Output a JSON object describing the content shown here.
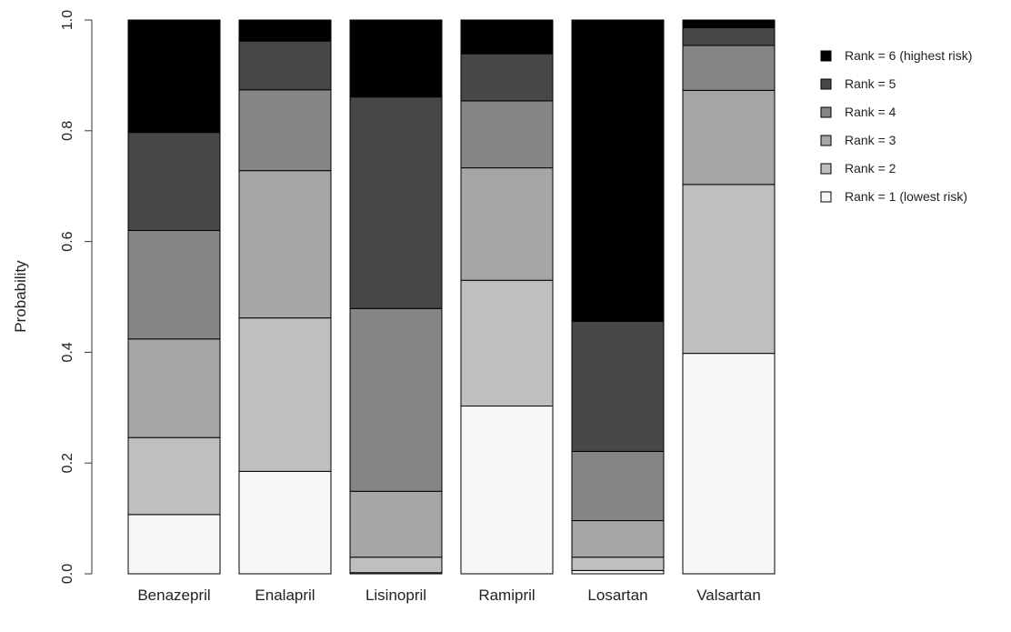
{
  "chart_data": {
    "type": "bar",
    "stacked": true,
    "title": "",
    "xlabel": "",
    "ylabel": "Probability",
    "ylim": [
      0,
      1
    ],
    "yticks": [
      "0.0",
      "0.2",
      "0.4",
      "0.6",
      "0.8",
      "1.0"
    ],
    "grid": false,
    "legend_position": "top-right",
    "categories": [
      "Benazepril",
      "Enalapril",
      "Lisinopril",
      "Ramipril",
      "Losartan",
      "Valsartan"
    ],
    "series": [
      {
        "name": "Rank = 1 (lowest risk)",
        "color": "#f7f7f7",
        "values": [
          0.107,
          0.185,
          0.002,
          0.303,
          0.006,
          0.398
        ]
      },
      {
        "name": "Rank = 2",
        "color": "#bfbfbf",
        "values": [
          0.139,
          0.277,
          0.028,
          0.227,
          0.024,
          0.305
        ]
      },
      {
        "name": "Rank = 3",
        "color": "#a6a6a6",
        "values": [
          0.178,
          0.266,
          0.119,
          0.203,
          0.066,
          0.17
        ]
      },
      {
        "name": "Rank = 4",
        "color": "#858585",
        "values": [
          0.196,
          0.146,
          0.33,
          0.121,
          0.125,
          0.081
        ]
      },
      {
        "name": "Rank = 5",
        "color": "#474747",
        "values": [
          0.177,
          0.088,
          0.382,
          0.085,
          0.235,
          0.032
        ]
      },
      {
        "name": "Rank = 6 (highest risk)",
        "color": "#000000",
        "values": [
          0.203,
          0.038,
          0.139,
          0.061,
          0.544,
          0.014
        ]
      }
    ]
  }
}
